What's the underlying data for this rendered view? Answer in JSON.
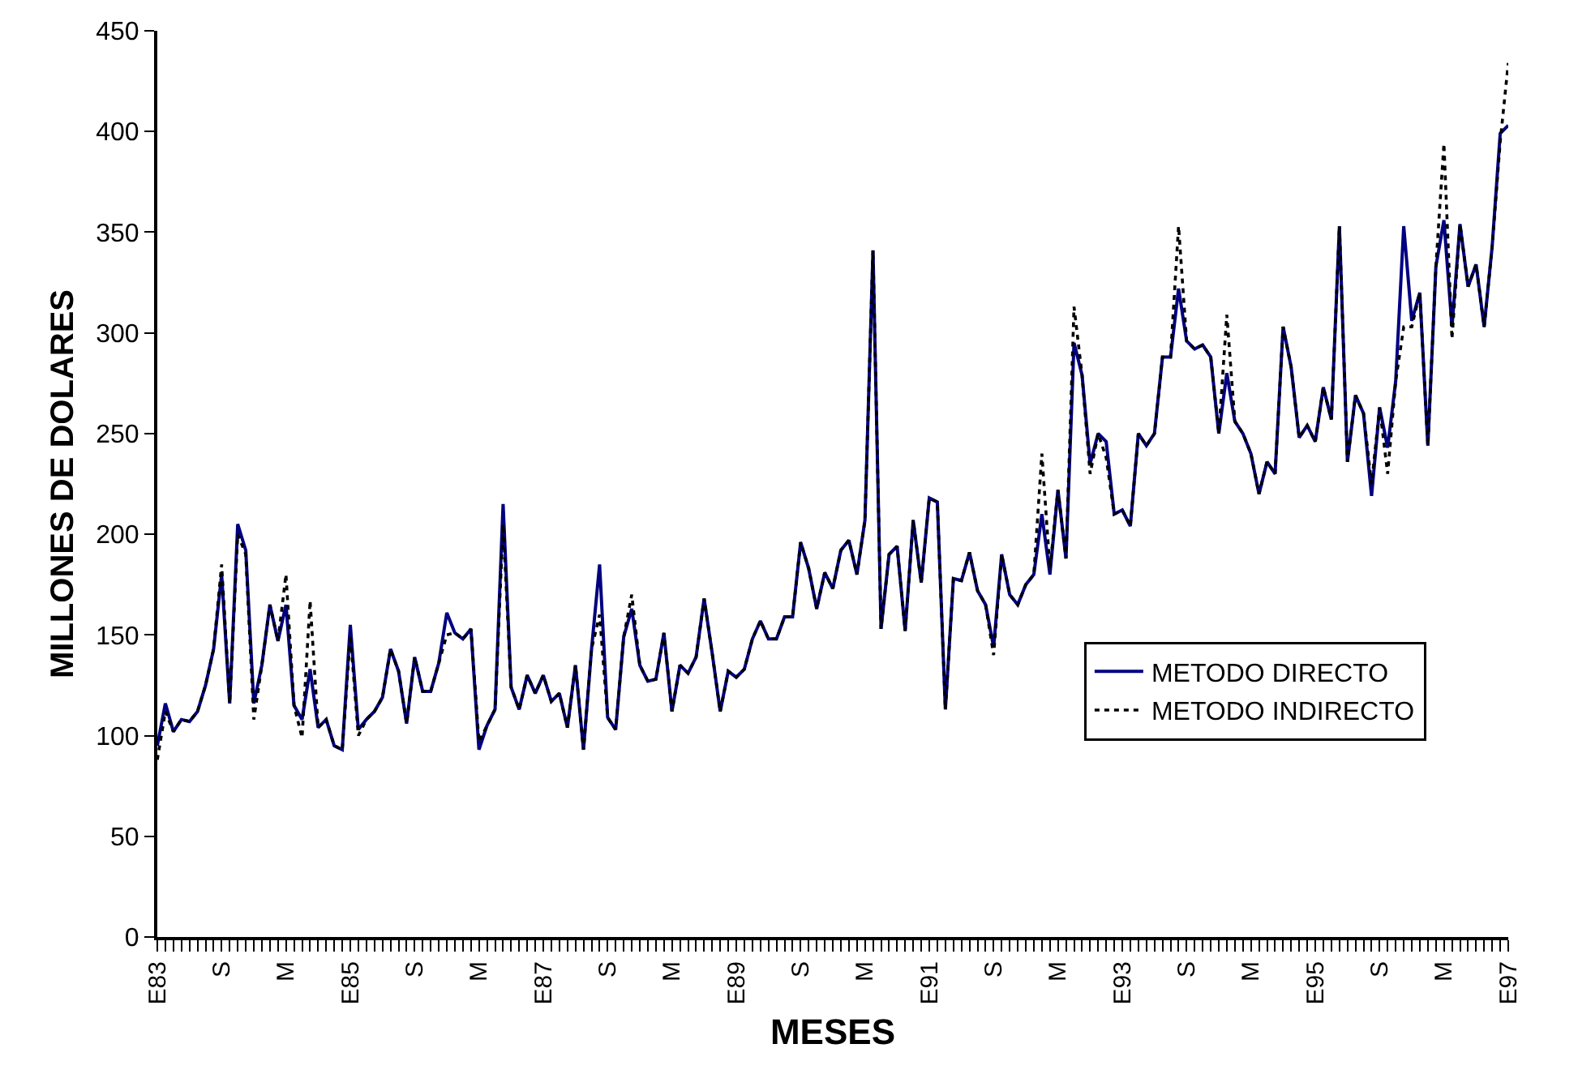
{
  "chart_data": {
    "type": "line",
    "xlabel": "MESES",
    "ylabel": "MILLONES DE DOLARES",
    "categories": [
      "E83",
      null,
      null,
      null,
      null,
      null,
      null,
      null,
      "S",
      null,
      null,
      null,
      null,
      null,
      null,
      null,
      "M",
      null,
      null,
      null,
      null,
      null,
      null,
      null,
      "E85",
      null,
      null,
      null,
      null,
      null,
      null,
      null,
      "S",
      null,
      null,
      null,
      null,
      null,
      null,
      null,
      "M",
      null,
      null,
      null,
      null,
      null,
      null,
      null,
      "E87",
      null,
      null,
      null,
      null,
      null,
      null,
      null,
      "S",
      null,
      null,
      null,
      null,
      null,
      null,
      null,
      "M",
      null,
      null,
      null,
      null,
      null,
      null,
      null,
      "E89",
      null,
      null,
      null,
      null,
      null,
      null,
      null,
      "S",
      null,
      null,
      null,
      null,
      null,
      null,
      null,
      "M",
      null,
      null,
      null,
      null,
      null,
      null,
      null,
      "E91",
      null,
      null,
      null,
      null,
      null,
      null,
      null,
      "S",
      null,
      null,
      null,
      null,
      null,
      null,
      null,
      "M",
      null,
      null,
      null,
      null,
      null,
      null,
      null,
      "E93",
      null,
      null,
      null,
      null,
      null,
      null,
      null,
      "S",
      null,
      null,
      null,
      null,
      null,
      null,
      null,
      "M",
      null,
      null,
      null,
      null,
      null,
      null,
      null,
      "E95",
      null,
      null,
      null,
      null,
      null,
      null,
      null,
      "S",
      null,
      null,
      null,
      null,
      null,
      null,
      null,
      "M",
      null,
      null,
      null,
      null,
      null,
      null,
      null,
      "E97"
    ],
    "series": [
      {
        "name": "METODO DIRECTO",
        "color": "#000080",
        "line_style": "solid",
        "values": [
          95,
          116,
          102,
          108,
          107,
          112,
          125,
          143,
          180,
          116,
          205,
          192,
          116,
          135,
          165,
          147,
          165,
          115,
          108,
          133,
          104,
          108,
          95,
          93,
          155,
          103,
          108,
          112,
          119,
          143,
          132,
          106,
          139,
          122,
          122,
          136,
          161,
          151,
          148,
          153,
          93,
          105,
          113,
          215,
          124,
          113,
          130,
          121,
          130,
          117,
          121,
          104,
          135,
          93,
          143,
          185,
          109,
          103,
          149,
          163,
          135,
          127,
          128,
          151,
          112,
          135,
          131,
          139,
          168,
          141,
          112,
          132,
          129,
          133,
          148,
          157,
          148,
          148,
          159,
          159,
          196,
          183,
          163,
          181,
          173,
          192,
          197,
          180,
          207,
          341,
          153,
          190,
          194,
          152,
          207,
          176,
          218,
          216,
          113,
          178,
          177,
          191,
          172,
          165,
          144,
          190,
          170,
          165,
          175,
          180,
          210,
          180,
          222,
          188,
          295,
          279,
          235,
          250,
          246,
          210,
          212,
          204,
          250,
          244,
          250,
          288,
          288,
          322,
          296,
          292,
          294,
          288,
          250,
          280,
          256,
          250,
          240,
          220,
          236,
          230,
          303,
          283,
          248,
          254,
          246,
          273,
          257,
          353,
          236,
          269,
          260,
          219,
          263,
          243,
          276,
          353,
          306,
          320,
          244,
          333,
          356,
          303,
          354,
          323,
          334,
          303,
          343,
          399,
          403
        ]
      },
      {
        "name": "METODO INDIRECTO",
        "color": "#000000",
        "line_style": "dotted",
        "values": [
          88,
          112,
          102,
          108,
          107,
          112,
          125,
          143,
          185,
          116,
          200,
          190,
          108,
          135,
          165,
          147,
          180,
          115,
          99,
          167,
          104,
          108,
          95,
          93,
          150,
          100,
          108,
          112,
          119,
          143,
          132,
          106,
          139,
          122,
          122,
          136,
          150,
          151,
          148,
          153,
          97,
          105,
          113,
          205,
          124,
          113,
          130,
          121,
          130,
          117,
          121,
          104,
          135,
          93,
          143,
          160,
          109,
          103,
          149,
          170,
          135,
          127,
          128,
          151,
          112,
          135,
          131,
          139,
          168,
          141,
          112,
          132,
          129,
          133,
          148,
          157,
          148,
          148,
          159,
          159,
          196,
          183,
          163,
          181,
          173,
          192,
          197,
          180,
          207,
          341,
          153,
          190,
          194,
          152,
          207,
          176,
          218,
          216,
          113,
          178,
          177,
          191,
          172,
          165,
          140,
          190,
          170,
          165,
          175,
          180,
          240,
          183,
          222,
          188,
          313,
          279,
          230,
          250,
          238,
          210,
          212,
          204,
          250,
          244,
          250,
          288,
          288,
          353,
          296,
          292,
          294,
          288,
          250,
          309,
          256,
          250,
          240,
          220,
          236,
          230,
          303,
          283,
          248,
          254,
          246,
          273,
          257,
          353,
          236,
          269,
          260,
          225,
          263,
          230,
          276,
          303,
          303,
          320,
          244,
          333,
          394,
          297,
          354,
          323,
          334,
          303,
          343,
          395,
          434
        ]
      }
    ],
    "ylim": [
      0,
      450
    ],
    "yticks": [
      0,
      50,
      100,
      150,
      200,
      250,
      300,
      350,
      400,
      450
    ],
    "legend": "right",
    "grid": false,
    "marker": "none"
  }
}
